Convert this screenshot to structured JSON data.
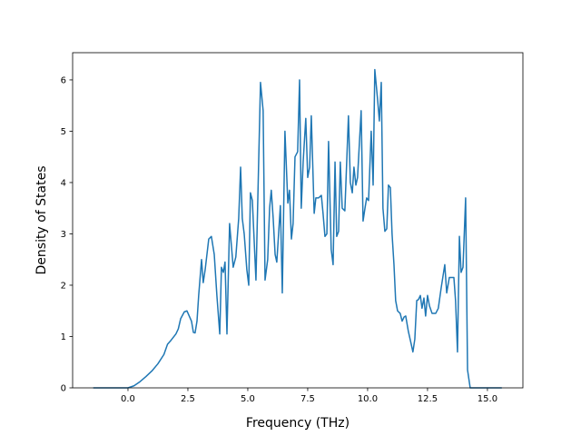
{
  "chart_data": {
    "type": "line",
    "xlabel": "Frequency (THz)",
    "ylabel": "Density of States",
    "color": "#1f77b4",
    "xlim": [
      -2.31,
      16.48
    ],
    "ylim": [
      0,
      6.53
    ],
    "xticks": [
      {
        "value": 0,
        "label": "0.0"
      },
      {
        "value": 2.5,
        "label": "2.5"
      },
      {
        "value": 5,
        "label": "5.0"
      },
      {
        "value": 7.5,
        "label": "7.5"
      },
      {
        "value": 10,
        "label": "10.0"
      },
      {
        "value": 12.5,
        "label": "12.5"
      },
      {
        "value": 15,
        "label": "15.0"
      }
    ],
    "yticks": [
      0,
      1,
      2,
      3,
      4,
      5,
      6
    ],
    "x": [
      -1.45,
      0.0,
      0.25,
      0.5,
      0.75,
      1.0,
      1.25,
      1.5,
      1.65,
      1.8,
      2.0,
      2.1,
      2.2,
      2.35,
      2.46,
      2.65,
      2.73,
      2.8,
      2.88,
      2.95,
      3.07,
      3.14,
      3.22,
      3.37,
      3.48,
      3.6,
      3.71,
      3.83,
      3.9,
      3.98,
      4.05,
      4.13,
      4.24,
      4.39,
      4.5,
      4.62,
      4.7,
      4.77,
      4.85,
      4.96,
      5.04,
      5.11,
      5.19,
      5.34,
      5.53,
      5.64,
      5.72,
      5.83,
      5.91,
      5.98,
      6.06,
      6.14,
      6.21,
      6.36,
      6.44,
      6.55,
      6.67,
      6.74,
      6.82,
      6.89,
      6.97,
      7.08,
      7.16,
      7.23,
      7.31,
      7.42,
      7.5,
      7.58,
      7.65,
      7.77,
      7.84,
      7.95,
      8.07,
      8.14,
      8.22,
      8.3,
      8.37,
      8.48,
      8.56,
      8.64,
      8.71,
      8.79,
      8.86,
      8.94,
      9.05,
      9.2,
      9.28,
      9.36,
      9.43,
      9.51,
      9.58,
      9.73,
      9.81,
      9.89,
      9.96,
      10.04,
      10.15,
      10.23,
      10.3,
      10.42,
      10.49,
      10.57,
      10.64,
      10.72,
      10.8,
      10.87,
      10.95,
      11.02,
      11.1,
      11.17,
      11.25,
      11.36,
      11.44,
      11.52,
      11.59,
      11.7,
      11.82,
      11.89,
      11.97,
      12.05,
      12.12,
      12.2,
      12.27,
      12.35,
      12.42,
      12.5,
      12.58,
      12.69,
      12.84,
      12.95,
      13.07,
      13.22,
      13.3,
      13.41,
      13.6,
      13.67,
      13.75,
      13.83,
      13.9,
      13.98,
      14.09,
      14.17,
      14.28,
      15.6
    ],
    "values": [
      0,
      0,
      0.04,
      0.12,
      0.22,
      0.33,
      0.47,
      0.65,
      0.85,
      0.93,
      1.05,
      1.15,
      1.35,
      1.48,
      1.5,
      1.3,
      1.08,
      1.07,
      1.3,
      1.8,
      2.5,
      2.05,
      2.3,
      2.9,
      2.95,
      2.6,
      1.8,
      1.05,
      2.35,
      2.25,
      2.45,
      1.05,
      3.2,
      2.35,
      2.55,
      3.3,
      4.3,
      3.3,
      3.0,
      2.3,
      2.0,
      3.8,
      3.65,
      2.1,
      5.95,
      5.4,
      2.1,
      2.5,
      3.5,
      3.85,
      3.3,
      2.6,
      2.45,
      3.55,
      1.85,
      5.0,
      3.6,
      3.85,
      2.9,
      3.2,
      4.5,
      4.6,
      6.0,
      3.5,
      4.4,
      5.25,
      4.1,
      4.3,
      5.3,
      3.4,
      3.7,
      3.7,
      3.75,
      3.4,
      2.95,
      3.0,
      4.8,
      2.7,
      2.4,
      4.4,
      2.95,
      3.05,
      4.4,
      3.5,
      3.45,
      5.3,
      4.0,
      3.8,
      4.3,
      3.95,
      4.1,
      5.4,
      3.25,
      3.5,
      3.7,
      3.65,
      5.0,
      3.95,
      6.2,
      5.6,
      5.2,
      5.95,
      3.5,
      3.05,
      3.1,
      3.95,
      3.9,
      3.0,
      2.4,
      1.7,
      1.5,
      1.45,
      1.3,
      1.38,
      1.4,
      1.1,
      0.85,
      0.7,
      0.95,
      1.7,
      1.72,
      1.8,
      1.55,
      1.75,
      1.4,
      1.8,
      1.6,
      1.45,
      1.45,
      1.55,
      1.95,
      2.4,
      1.85,
      2.15,
      2.15,
      1.7,
      0.7,
      2.95,
      2.25,
      2.35,
      3.7,
      0.35,
      0,
      0
    ]
  }
}
